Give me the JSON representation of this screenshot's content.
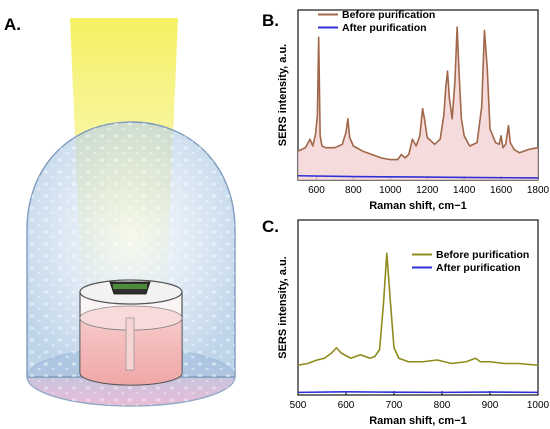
{
  "panels": {
    "a": "A.",
    "b": "B.",
    "c": "C."
  },
  "colors": {
    "before_b": "#A0674A",
    "before_b_fill": "#F3D2D2",
    "before_c": "#8E8C1C",
    "after": "#3030D8"
  },
  "illustration": {
    "description_icons": [
      "light-beam",
      "glass-dome",
      "sample-cup",
      "sers-chip",
      "base-plate"
    ]
  },
  "chart_data": [
    {
      "type": "line",
      "panel": "B.",
      "xlabel": "Raman shift, cm−1",
      "ylabel": "SERS intensity, a.u.",
      "xlim": [
        500,
        1800
      ],
      "xticks": [
        600,
        800,
        1000,
        1200,
        1400,
        1600,
        1800
      ],
      "ylim": [
        0,
        100
      ],
      "legend_position": "top-left",
      "grid": false,
      "series": [
        {
          "name": "Before purification",
          "color": "#A0674A",
          "filled": true,
          "x": [
            500,
            540,
            565,
            580,
            595,
            605,
            612,
            620,
            630,
            650,
            700,
            740,
            760,
            770,
            780,
            800,
            850,
            900,
            950,
            1000,
            1040,
            1060,
            1080,
            1100,
            1120,
            1140,
            1160,
            1175,
            1185,
            1200,
            1240,
            1270,
            1290,
            1300,
            1310,
            1320,
            1335,
            1350,
            1362,
            1372,
            1385,
            1400,
            1430,
            1470,
            1495,
            1510,
            1525,
            1540,
            1570,
            1590,
            1600,
            1610,
            1625,
            1640,
            1650,
            1670,
            1700,
            1750,
            1800
          ],
          "y": [
            17,
            19,
            24,
            20,
            27,
            38,
            84,
            26,
            20,
            19,
            19,
            21,
            28,
            36,
            25,
            20,
            17,
            15,
            13,
            12,
            12,
            15,
            13,
            15,
            24,
            20,
            26,
            42,
            36,
            25,
            21,
            24,
            38,
            54,
            64,
            48,
            36,
            58,
            90,
            64,
            36,
            26,
            20,
            22,
            43,
            88,
            66,
            30,
            22,
            21,
            26,
            19,
            21,
            32,
            22,
            18,
            16,
            18,
            19
          ]
        },
        {
          "name": "After purification",
          "color": "#3030D8",
          "filled": false,
          "x": [
            500,
            800,
            1100,
            1400,
            1800
          ],
          "y": [
            2.5,
            2.0,
            1.8,
            1.5,
            1.2
          ]
        }
      ]
    },
    {
      "type": "line",
      "panel": "C.",
      "xlabel": "Raman shift, cm−1",
      "ylabel": "SERS intensity, a.u.",
      "xlim": [
        500,
        1000
      ],
      "xticks": [
        500,
        600,
        700,
        800,
        900,
        1000
      ],
      "ylim": [
        0,
        100
      ],
      "legend_position": "top-right",
      "grid": false,
      "series": [
        {
          "name": "Before purification",
          "color": "#8E8C1C",
          "filled": false,
          "x": [
            500,
            520,
            540,
            555,
            570,
            580,
            590,
            610,
            630,
            650,
            660,
            670,
            678,
            685,
            692,
            700,
            710,
            730,
            760,
            790,
            820,
            850,
            870,
            880,
            900,
            930,
            960,
            1000
          ],
          "y": [
            17,
            18,
            20,
            21,
            24,
            27,
            24,
            21,
            23,
            21,
            22,
            26,
            52,
            81,
            55,
            27,
            21,
            19,
            19,
            20,
            18,
            19,
            21,
            19,
            19,
            18,
            18,
            17
          ]
        },
        {
          "name": "After purification",
          "color": "#3030D8",
          "filled": false,
          "x": [
            500,
            600,
            700,
            800,
            900,
            1000
          ],
          "y": [
            1.5,
            1.8,
            1.6,
            1.5,
            1.7,
            1.5
          ]
        }
      ]
    }
  ]
}
